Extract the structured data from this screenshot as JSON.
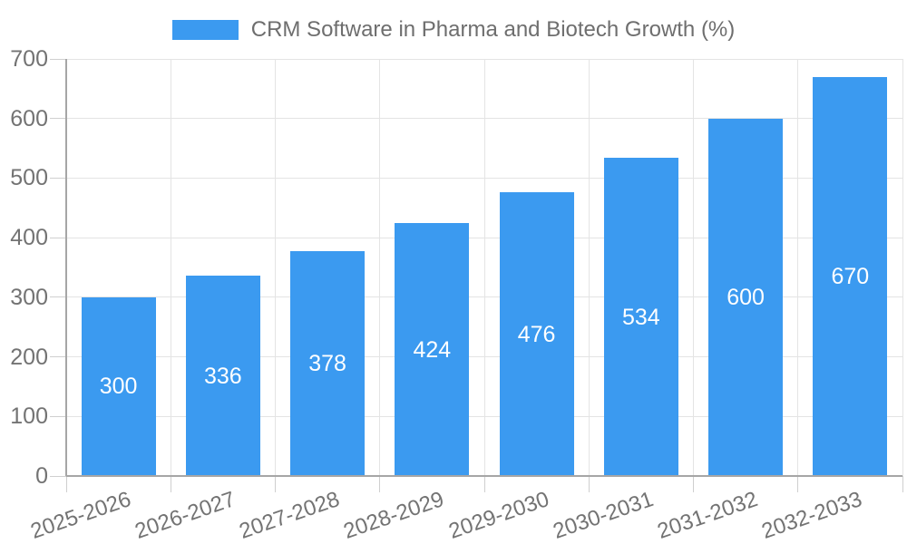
{
  "legend": {
    "label": "CRM Software in Pharma and Biotech Growth (%)"
  },
  "colors": {
    "bar": "#3b9af0",
    "grid": "#e4e4e4",
    "axis": "#a6a6a6",
    "tick": "#cfcfcf",
    "text": "#737373",
    "title_text": "#6e6e6e",
    "value_label": "#ffffff",
    "background": "#ffffff"
  },
  "chart_data": {
    "type": "bar",
    "title": "CRM Software in Pharma and Biotech Growth (%)",
    "categories": [
      "2025-2026",
      "2026-2027",
      "2027-2028",
      "2028-2029",
      "2029-2030",
      "2030-2031",
      "2031-2032",
      "2032-2033"
    ],
    "values": [
      300,
      336,
      378,
      424,
      476,
      534,
      600,
      670
    ],
    "xlabel": "",
    "ylabel": "",
    "ylim": [
      0,
      700
    ],
    "yticks": [
      0,
      100,
      200,
      300,
      400,
      500,
      600,
      700
    ],
    "grid": true,
    "legend_position": "top-center",
    "value_labels_position": "inside-center",
    "bar_width_fraction": 0.71,
    "x_tick_label_rotation_deg": -19
  }
}
